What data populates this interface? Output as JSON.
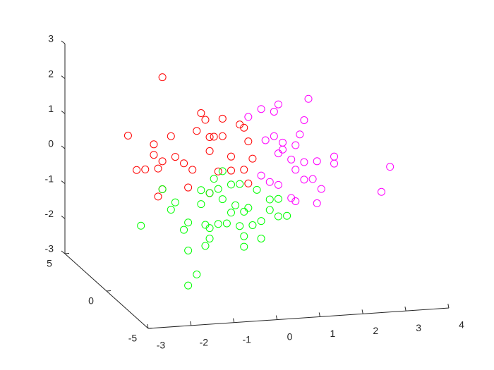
{
  "chart_data": {
    "type": "scatter3d",
    "xlim": [
      -3,
      4
    ],
    "ylim": [
      -5,
      5
    ],
    "zlim": [
      -3,
      3
    ],
    "xticks": [
      -3,
      -2,
      -1,
      0,
      1,
      2,
      3,
      4
    ],
    "yticks": [
      -5,
      0,
      5
    ],
    "zticks": [
      -3,
      -2,
      -1,
      0,
      1,
      2,
      3
    ],
    "series": [
      {
        "color": "#ff0000",
        "x": [
          -1.7,
          -2.5,
          -1.9,
          -1.5,
          -1.9,
          -1.7,
          -2.3,
          -2.1,
          -1.8,
          -1.4,
          -1.2,
          -1.0,
          -0.8,
          -0.9,
          -0.7,
          -0.6,
          -0.3,
          -0.5,
          -0.6,
          -0.3,
          -0.1,
          0.1,
          0.3,
          0.2,
          0.4,
          0.2,
          0.3,
          -0.6,
          -1.1,
          -1.7,
          -1.8,
          -0.4,
          -0.1
        ],
        "y": [
          0,
          0,
          0,
          0,
          0,
          0,
          0,
          0,
          0,
          0,
          0,
          0,
          0,
          0,
          0,
          0,
          0,
          0,
          0,
          0,
          0,
          0,
          0,
          0,
          0,
          0,
          0,
          0,
          0,
          0,
          0,
          0,
          0
        ],
        "z": [
          3.0,
          1.4,
          1.1,
          1.3,
          0.8,
          0.6,
          0.4,
          0.4,
          0.4,
          0.7,
          0.5,
          0.3,
          1.9,
          1.4,
          1.7,
          1.2,
          1.7,
          1.2,
          0.8,
          1.2,
          0.6,
          1.5,
          1.0,
          1.4,
          0.5,
          0.2,
          -0.2,
          -0.4,
          -0.2,
          -0.2,
          -0.4,
          0.2,
          0.2
        ]
      },
      {
        "color": "#ff00ff",
        "x": [
          0.3,
          0.6,
          1.0,
          0.9,
          1.6,
          1.7,
          1.5,
          1.4,
          1.1,
          0.7,
          1.0,
          1.3,
          1.6,
          1.9,
          2.3,
          2.3,
          1.8,
          2.0,
          1.6,
          1.4,
          0.6,
          0.8,
          1.0,
          1.3,
          1.4,
          1.9,
          3.4,
          3.6,
          0.9,
          1.1
        ],
        "y": [
          0,
          0,
          0,
          0,
          0,
          0,
          0,
          0,
          0,
          0,
          0,
          0,
          0,
          0,
          0,
          0,
          0,
          0,
          0,
          0,
          0,
          0,
          0,
          0,
          0,
          0,
          0,
          0,
          0,
          0
        ],
        "z": [
          1.7,
          1.9,
          2.0,
          1.8,
          1.5,
          2.1,
          1.1,
          0.8,
          0.9,
          1.0,
          0.6,
          0.4,
          0.3,
          0.3,
          0.4,
          0.2,
          -0.2,
          -0.5,
          -0.2,
          0.1,
          0.0,
          -0.2,
          -0.3,
          -0.7,
          -0.8,
          -0.9,
          -0.7,
          0.0,
          1.1,
          0.7
        ]
      },
      {
        "color": "#00ff00",
        "x": [
          -2.2,
          -1.5,
          -1.4,
          -1.7,
          -1.2,
          -1.1,
          -1.1,
          -0.9,
          -1.1,
          -0.8,
          -0.8,
          -0.6,
          -0.4,
          -0.6,
          -0.6,
          -0.7,
          -0.7,
          -0.4,
          -0.2,
          -0.1,
          0.1,
          0.2,
          0.2,
          0.2,
          0.3,
          0.4,
          0.6,
          0.6,
          0.8,
          1.0,
          1.2,
          1.0,
          0.8,
          -0.3,
          -0.1,
          0.1,
          -0.5,
          -0.3,
          0.0,
          0.5
        ],
        "y": [
          0,
          0,
          0,
          0,
          0,
          0,
          0,
          0,
          0,
          0,
          0,
          0,
          0,
          0,
          0,
          0,
          0,
          0,
          0,
          0,
          0,
          0,
          0,
          0,
          0,
          0,
          0,
          0,
          0,
          0,
          0,
          0,
          0,
          0,
          0,
          0,
          0,
          0,
          0,
          0
        ],
        "z": [
          -1.2,
          -0.8,
          -0.6,
          -0.2,
          -1.4,
          -1.2,
          -2.0,
          -2.7,
          -3.0,
          -0.7,
          -0.3,
          -0.4,
          -0.3,
          -1.4,
          -1.7,
          -1.9,
          -1.3,
          -1.3,
          -1.3,
          -1.0,
          -1.4,
          -1.7,
          -2.0,
          -1.0,
          -0.9,
          -1.4,
          -1.8,
          -1.3,
          -1.0,
          -1.2,
          -1.2,
          -0.7,
          -0.7,
          0.2,
          -0.2,
          -0.2,
          0.0,
          -0.6,
          -0.8,
          -0.4
        ]
      }
    ]
  }
}
